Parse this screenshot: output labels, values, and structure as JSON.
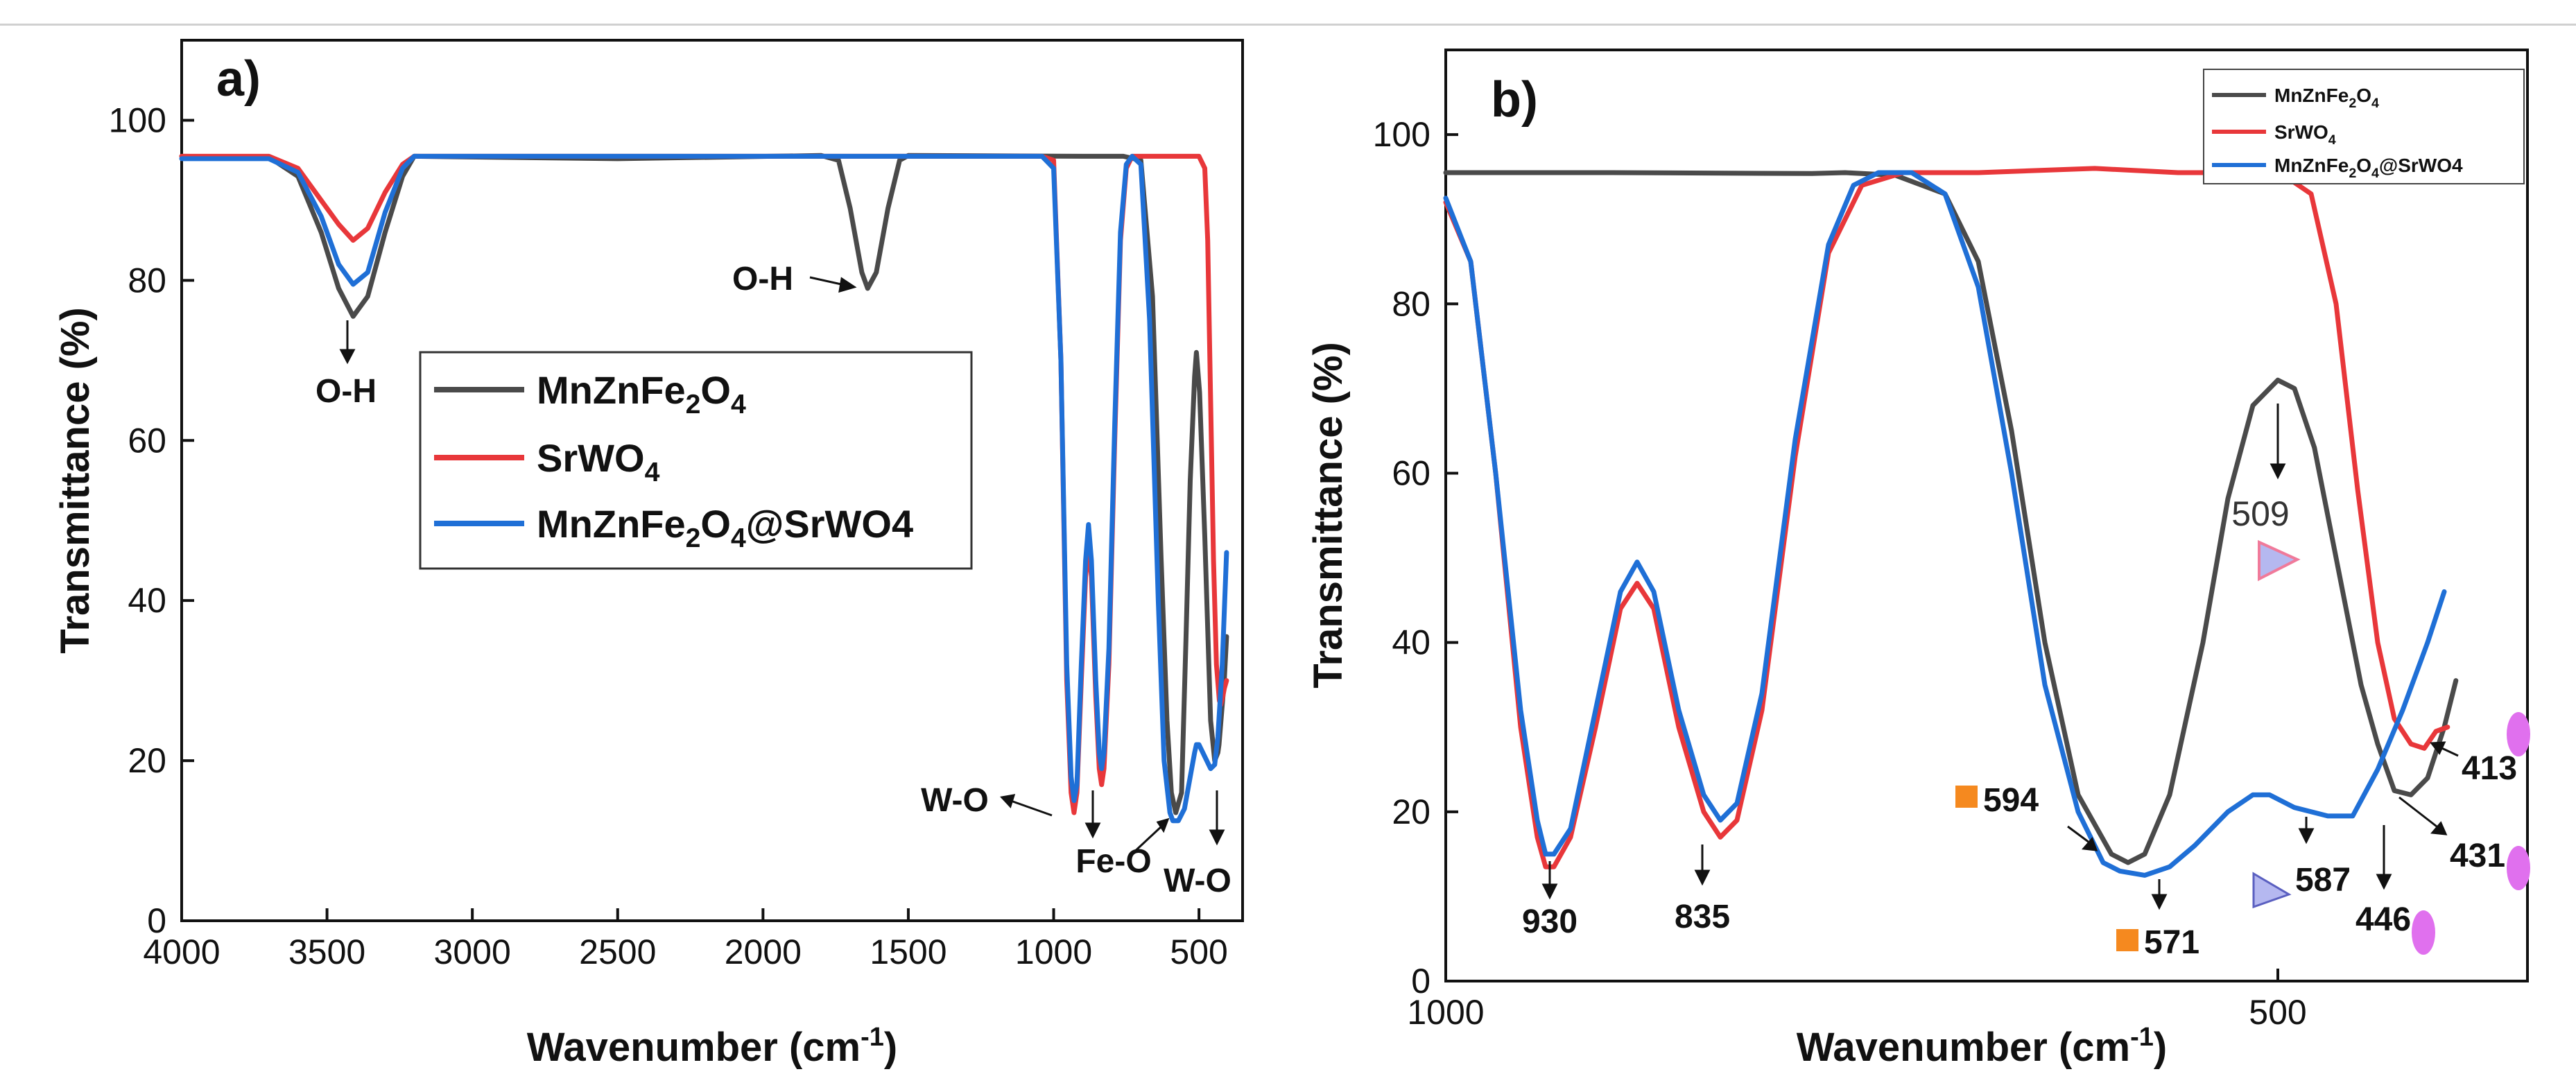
{
  "chart_data": [
    {
      "panel_label": "a)",
      "type": "line",
      "xlabel_main": "Wavenumber (cm",
      "xlabel_sup": "-1",
      "xlabel_end": ")",
      "ylabel": "Transmittance (%)",
      "xlim": [
        4000,
        350
      ],
      "ylim": [
        0,
        110
      ],
      "x_ticks": [
        4000,
        3500,
        3000,
        2500,
        2000,
        1500,
        1000,
        500
      ],
      "y_ticks": [
        0,
        20,
        40,
        60,
        80,
        100
      ],
      "legend_position": "center-right",
      "series": [
        {
          "name": "MnZnFe2O4",
          "color": "#4a4a4a",
          "points": [
            [
              4000,
              95.5
            ],
            [
              3700,
              95.4
            ],
            [
              3600,
              93
            ],
            [
              3520,
              86
            ],
            [
              3460,
              79
            ],
            [
              3410,
              75.5
            ],
            [
              3360,
              78
            ],
            [
              3300,
              86
            ],
            [
              3240,
              93
            ],
            [
              3200,
              95.5
            ],
            [
              2500,
              95.2
            ],
            [
              1800,
              95.6
            ],
            [
              1740,
              95
            ],
            [
              1700,
              89
            ],
            [
              1660,
              81
            ],
            [
              1640,
              79
            ],
            [
              1610,
              81
            ],
            [
              1570,
              89
            ],
            [
              1530,
              95
            ],
            [
              1500,
              95.6
            ],
            [
              900,
              95.5
            ],
            [
              760,
              95.5
            ],
            [
              700,
              95
            ],
            [
              660,
              78
            ],
            [
              630,
              45
            ],
            [
              610,
              25
            ],
            [
              595,
              16
            ],
            [
              580,
              13.5
            ],
            [
              560,
              16
            ],
            [
              545,
              35
            ],
            [
              530,
              55
            ],
            [
              515,
              68
            ],
            [
              509,
              71
            ],
            [
              498,
              66
            ],
            [
              480,
              48
            ],
            [
              460,
              25
            ],
            [
              446,
              20
            ],
            [
              435,
              21
            ],
            [
              431,
              22
            ],
            [
              420,
              27
            ],
            [
              413,
              30
            ],
            [
              405,
              35.5
            ]
          ]
        },
        {
          "name": "SrWO4",
          "color": "#e8373a",
          "points": [
            [
              4000,
              95.5
            ],
            [
              3700,
              95.5
            ],
            [
              3600,
              94
            ],
            [
              3520,
              90
            ],
            [
              3460,
              87
            ],
            [
              3410,
              85
            ],
            [
              3360,
              86.5
            ],
            [
              3300,
              91
            ],
            [
              3240,
              94.5
            ],
            [
              3200,
              95.5
            ],
            [
              1040,
              95.5
            ],
            [
              1000,
              95
            ],
            [
              975,
              70
            ],
            [
              955,
              30
            ],
            [
              940,
              16
            ],
            [
              930,
              13.5
            ],
            [
              920,
              16
            ],
            [
              905,
              30
            ],
            [
              890,
              43
            ],
            [
              880,
              47
            ],
            [
              870,
              43
            ],
            [
              855,
              28
            ],
            [
              843,
              19
            ],
            [
              835,
              17
            ],
            [
              827,
              19
            ],
            [
              810,
              32
            ],
            [
              790,
              60
            ],
            [
              770,
              85
            ],
            [
              750,
              94
            ],
            [
              730,
              95.5
            ],
            [
              500,
              95.5
            ],
            [
              480,
              94
            ],
            [
              470,
              85
            ],
            [
              460,
              65
            ],
            [
              450,
              45
            ],
            [
              440,
              32
            ],
            [
              430,
              27.5
            ],
            [
              425,
              27
            ],
            [
              418,
              28
            ],
            [
              413,
              29
            ],
            [
              405,
              30
            ]
          ]
        },
        {
          "name": "MnZnFe2O4@SrWO4",
          "color": "#1f6fd6",
          "points": [
            [
              4000,
              95.2
            ],
            [
              3700,
              95.2
            ],
            [
              3600,
              93.5
            ],
            [
              3520,
              88
            ],
            [
              3460,
              82
            ],
            [
              3410,
              79.5
            ],
            [
              3360,
              81
            ],
            [
              3300,
              88.5
            ],
            [
              3240,
              94
            ],
            [
              3200,
              95.5
            ],
            [
              1040,
              95.5
            ],
            [
              1000,
              94
            ],
            [
              975,
              70
            ],
            [
              955,
              32
            ],
            [
              940,
              18
            ],
            [
              930,
              15
            ],
            [
              920,
              17
            ],
            [
              905,
              32
            ],
            [
              890,
              45
            ],
            [
              880,
              49.5
            ],
            [
              870,
              45
            ],
            [
              855,
              30
            ],
            [
              843,
              21
            ],
            [
              835,
              19
            ],
            [
              827,
              21
            ],
            [
              810,
              34
            ],
            [
              790,
              62
            ],
            [
              770,
              86
            ],
            [
              750,
              94.5
            ],
            [
              730,
              95.5
            ],
            [
              700,
              94.5
            ],
            [
              670,
              75
            ],
            [
              640,
              40
            ],
            [
              620,
              20
            ],
            [
              600,
              13.5
            ],
            [
              590,
              12.5
            ],
            [
              571,
              12.5
            ],
            [
              550,
              14
            ],
            [
              530,
              18
            ],
            [
              515,
              21
            ],
            [
              509,
              22
            ],
            [
              500,
              22
            ],
            [
              480,
              20.5
            ],
            [
              460,
              19
            ],
            [
              446,
              19.5
            ],
            [
              435,
              23
            ],
            [
              420,
              32
            ],
            [
              405,
              46
            ]
          ]
        }
      ],
      "annotations": [
        {
          "text": "O-H"
        },
        {
          "text": "O-H"
        },
        {
          "text": "W-O"
        },
        {
          "text": "Fe-O"
        },
        {
          "text": "W-O"
        }
      ]
    },
    {
      "panel_label": "b)",
      "type": "line",
      "xlabel_main": "Wavenumber (cm",
      "xlabel_sup": "-1",
      "xlabel_end": ")",
      "ylabel": "Transmittance (%)",
      "xlim": [
        1000,
        350
      ],
      "ylim": [
        0,
        110
      ],
      "x_ticks": [
        1000,
        500
      ],
      "y_ticks": [
        0,
        20,
        40,
        60,
        80,
        100
      ],
      "legend_position": "top-right",
      "series": [
        {
          "name": "MnZnFe2O4",
          "color": "#4a4a4a",
          "points": [
            [
              1000,
              95.5
            ],
            [
              900,
              95.5
            ],
            [
              780,
              95.4
            ],
            [
              760,
              95.5
            ],
            [
              730,
              95.2
            ],
            [
              700,
              93
            ],
            [
              680,
              85
            ],
            [
              660,
              65
            ],
            [
              640,
              40
            ],
            [
              620,
              22
            ],
            [
              600,
              15
            ],
            [
              590,
              14
            ],
            [
              580,
              15
            ],
            [
              565,
              22
            ],
            [
              545,
              40
            ],
            [
              530,
              57
            ],
            [
              515,
              68
            ],
            [
              500,
              71
            ],
            [
              490,
              70
            ],
            [
              478,
              63
            ],
            [
              465,
              50
            ],
            [
              450,
              35
            ],
            [
              440,
              28
            ],
            [
              430,
              22.5
            ],
            [
              420,
              22
            ],
            [
              410,
              24
            ],
            [
              400,
              30
            ],
            [
              393,
              35.5
            ]
          ]
        },
        {
          "name": "SrWO4",
          "color": "#e8373a",
          "points": [
            [
              1000,
              92
            ],
            [
              985,
              85
            ],
            [
              970,
              60
            ],
            [
              955,
              30
            ],
            [
              945,
              17
            ],
            [
              940,
              13.5
            ],
            [
              935,
              13.5
            ],
            [
              925,
              17
            ],
            [
              910,
              30
            ],
            [
              895,
              44
            ],
            [
              885,
              47
            ],
            [
              875,
              44
            ],
            [
              860,
              30
            ],
            [
              845,
              20
            ],
            [
              835,
              17
            ],
            [
              825,
              19
            ],
            [
              810,
              32
            ],
            [
              790,
              62
            ],
            [
              770,
              86
            ],
            [
              750,
              94
            ],
            [
              725,
              95.5
            ],
            [
              680,
              95.5
            ],
            [
              610,
              96
            ],
            [
              560,
              95.5
            ],
            [
              520,
              95.5
            ],
            [
              495,
              95
            ],
            [
              480,
              93
            ],
            [
              465,
              80
            ],
            [
              452,
              58
            ],
            [
              440,
              40
            ],
            [
              430,
              31
            ],
            [
              420,
              28
            ],
            [
              412,
              27.5
            ],
            [
              405,
              29.5
            ],
            [
              398,
              30
            ]
          ]
        },
        {
          "name": "MnZnFe2O4@SrWO4",
          "color": "#1f6fd6",
          "points": [
            [
              1000,
              92.5
            ],
            [
              985,
              85
            ],
            [
              970,
              60
            ],
            [
              955,
              32
            ],
            [
              945,
              19
            ],
            [
              940,
              15
            ],
            [
              935,
              15
            ],
            [
              925,
              18
            ],
            [
              910,
              32
            ],
            [
              895,
              46
            ],
            [
              885,
              49.5
            ],
            [
              875,
              46
            ],
            [
              860,
              32
            ],
            [
              845,
              22
            ],
            [
              835,
              19
            ],
            [
              825,
              21
            ],
            [
              810,
              34
            ],
            [
              790,
              64
            ],
            [
              770,
              87
            ],
            [
              755,
              94
            ],
            [
              740,
              95.5
            ],
            [
              720,
              95.5
            ],
            [
              700,
              93
            ],
            [
              680,
              82
            ],
            [
              660,
              60
            ],
            [
              640,
              35
            ],
            [
              620,
              20
            ],
            [
              605,
              14
            ],
            [
              595,
              13
            ],
            [
              580,
              12.5
            ],
            [
              565,
              13.5
            ],
            [
              550,
              16
            ],
            [
              530,
              20
            ],
            [
              515,
              22
            ],
            [
              505,
              22
            ],
            [
              490,
              20.5
            ],
            [
              470,
              19.5
            ],
            [
              455,
              19.5
            ],
            [
              440,
              25
            ],
            [
              425,
              32
            ],
            [
              410,
              40
            ],
            [
              400,
              46
            ]
          ]
        }
      ],
      "annotations": [
        {
          "text": "930"
        },
        {
          "text": "835"
        },
        {
          "text": "509"
        },
        {
          "text": "594"
        },
        {
          "text": "571"
        },
        {
          "text": "587"
        },
        {
          "text": "446"
        },
        {
          "text": "431"
        },
        {
          "text": "413"
        }
      ]
    }
  ]
}
